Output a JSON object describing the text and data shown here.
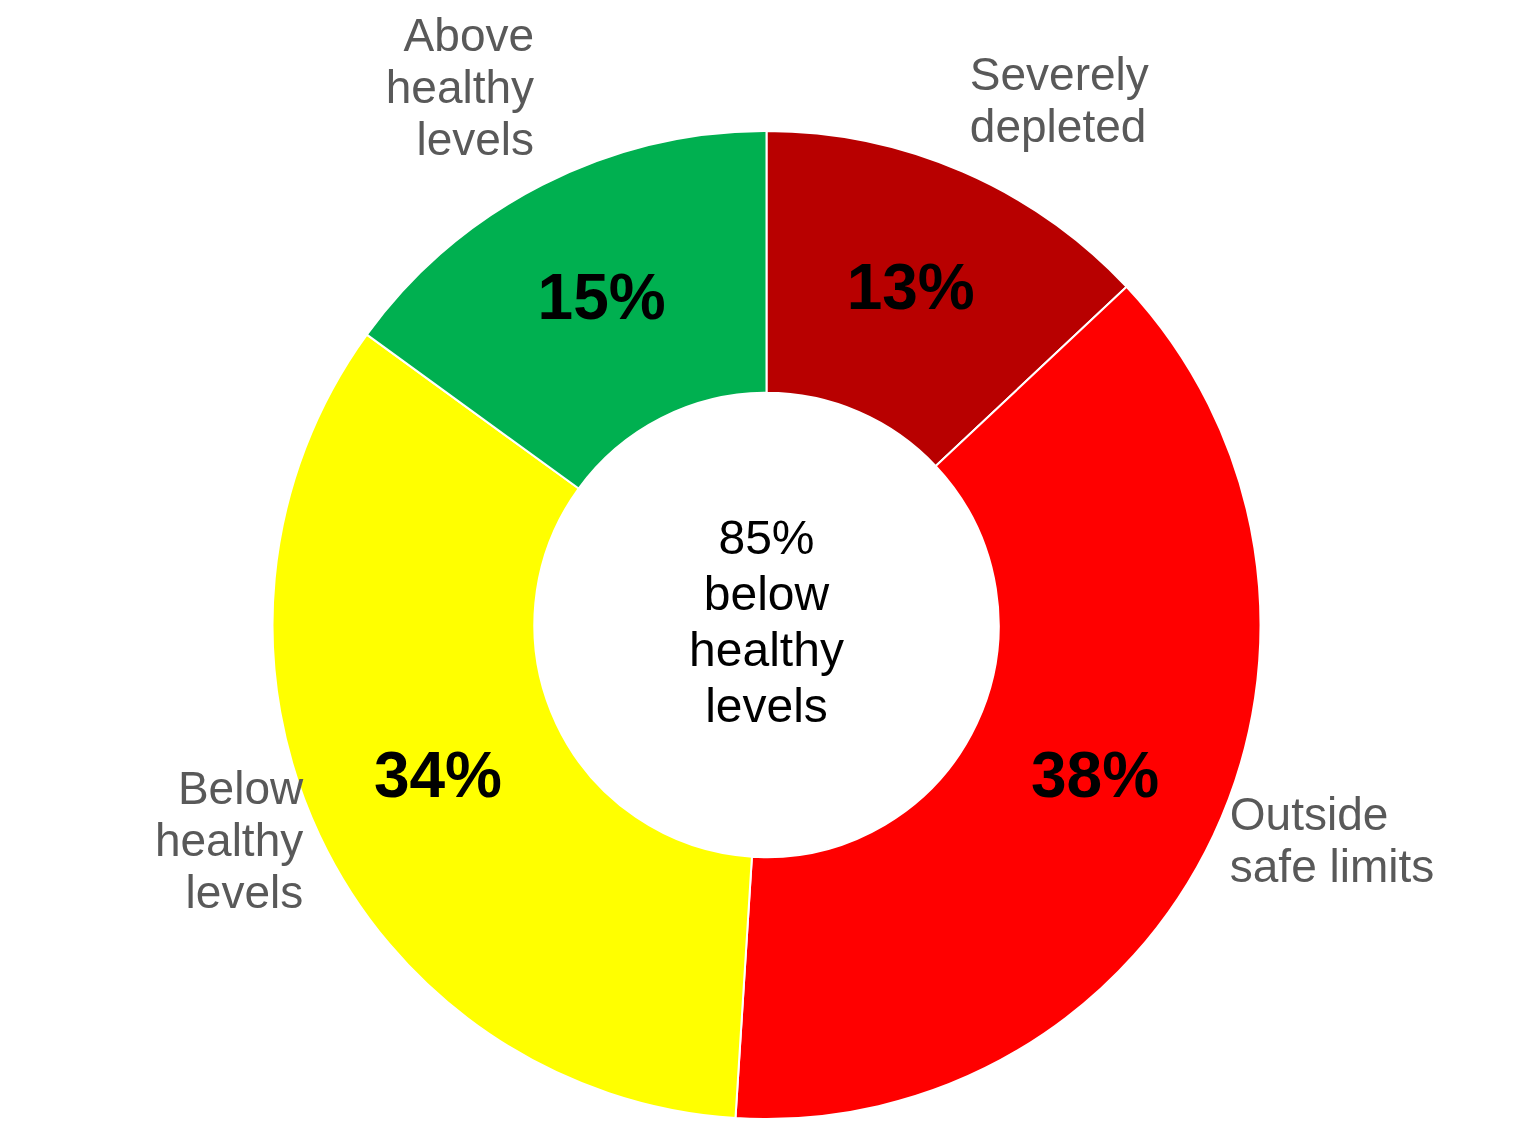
{
  "chart_data": {
    "type": "donut",
    "categories": [
      "Severely depleted",
      "Outside safe limits",
      "Below healthy levels",
      "Above healthy levels"
    ],
    "values": [
      13,
      38,
      34,
      15
    ],
    "value_labels": [
      "13%",
      "38%",
      "34%",
      "15%"
    ],
    "colors": [
      "#b80000",
      "#ff0000",
      "#ffff00",
      "#00b050"
    ],
    "annotations": [
      "85% below healthy levels"
    ]
  }
}
